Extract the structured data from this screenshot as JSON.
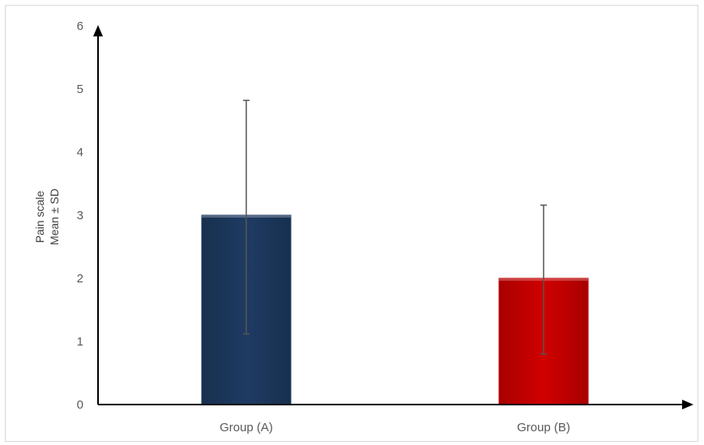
{
  "chart_data": {
    "type": "bar",
    "categories": [
      "Group (A)",
      "Group (B)"
    ],
    "values": [
      3,
      2
    ],
    "error_plus": [
      1.82,
      1.16
    ],
    "error_minus": [
      1.88,
      1.2
    ],
    "colors": [
      "#1f3b63",
      "#c00000"
    ],
    "ylabel_lines": [
      "Pain scale",
      "Mean ± SD"
    ],
    "ylim": [
      0,
      6
    ],
    "yticks": [
      "0",
      "1",
      "2",
      "3",
      "4",
      "5",
      "6"
    ],
    "grid": false,
    "legend": "none"
  }
}
